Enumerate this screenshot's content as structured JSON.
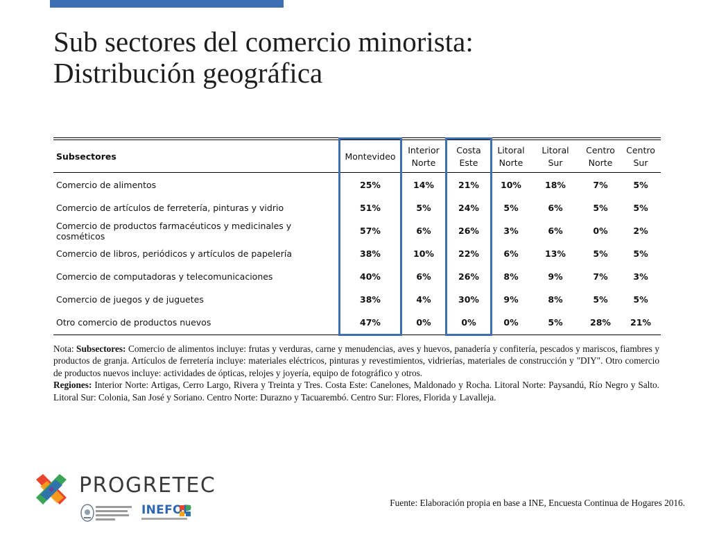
{
  "title_line1": "Sub sectores del comercio minorista:",
  "title_line2": "Distribución geográfica",
  "table": {
    "header_subsectores": "Subsectores",
    "columns": [
      {
        "line1": "Montevideo",
        "line2": ""
      },
      {
        "line1": "Interior",
        "line2": "Norte"
      },
      {
        "line1": "Costa",
        "line2": "Este"
      },
      {
        "line1": "Litoral",
        "line2": "Norte"
      },
      {
        "line1": "Litoral",
        "line2": "Sur"
      },
      {
        "line1": "Centro",
        "line2": "Norte"
      },
      {
        "line1": "Centro",
        "line2": "Sur"
      }
    ],
    "rows": [
      {
        "label": "Comercio de alimentos",
        "values": [
          "25%",
          "14%",
          "21%",
          "10%",
          "18%",
          "7%",
          "5%"
        ]
      },
      {
        "label": "Comercio de artículos de ferretería, pinturas y vidrio",
        "values": [
          "51%",
          "5%",
          "24%",
          "5%",
          "6%",
          "5%",
          "5%"
        ]
      },
      {
        "label": "Comercio de productos farmacéuticos y medicinales y cosméticos",
        "values": [
          "57%",
          "6%",
          "26%",
          "3%",
          "6%",
          "0%",
          "2%"
        ]
      },
      {
        "label": "Comercio de libros, periódicos y artículos de papelería",
        "values": [
          "38%",
          "10%",
          "22%",
          "6%",
          "13%",
          "5%",
          "5%"
        ]
      },
      {
        "label": "Comercio de computadoras y telecomunicaciones",
        "values": [
          "40%",
          "6%",
          "26%",
          "8%",
          "9%",
          "7%",
          "3%"
        ]
      },
      {
        "label": "Comercio de juegos y de juguetes",
        "values": [
          "38%",
          "4%",
          "30%",
          "9%",
          "8%",
          "5%",
          "5%"
        ]
      },
      {
        "label": "Otro comercio de productos nuevos",
        "values": [
          "47%",
          "0%",
          "0%",
          "0%",
          "5%",
          "28%",
          "21%"
        ]
      }
    ],
    "highlight_color": "#3f6fb3",
    "highlighted_columns": [
      "Montevideo",
      "Costa Este"
    ]
  },
  "note": {
    "prefix": "Nota: ",
    "subsectores_label": "Subsectores:",
    "subsectores_text": " Comercio de alimentos incluye: frutas y verduras, carne y menudencias, aves y huevos, panadería y confitería, pescados y mariscos, fiambres y productos de granja. Artículos de ferretería incluye: materiales eléctricos, pinturas y revestimientos, vidrierías, materiales de construcción y \"DIY\". Otro comercio de productos nuevos incluye: actividades de ópticas, relojes y joyería, equipo de fotográfico y otros.",
    "regiones_label": "Regiones:",
    "regiones_text": " Interior Norte: Artigas, Cerro Largo, Rivera y Treinta y Tres. Costa Este: Canelones, Maldonado y Rocha. Litoral Norte: Paysandú, Río Negro y Salto. Litoral Sur: Colonia, San José y Soriano. Centro Norte: Durazno y Tacuarembó. Centro Sur: Flores, Florida y Lavalleja."
  },
  "source": "Fuente: Elaboración propia en base a INE, Encuesta Continua de Hogares 2016.",
  "logos": {
    "progretec": "PROGRETEC",
    "inefop": "INEFOP"
  },
  "colors": {
    "accent_blue": "#3f6fb3"
  }
}
